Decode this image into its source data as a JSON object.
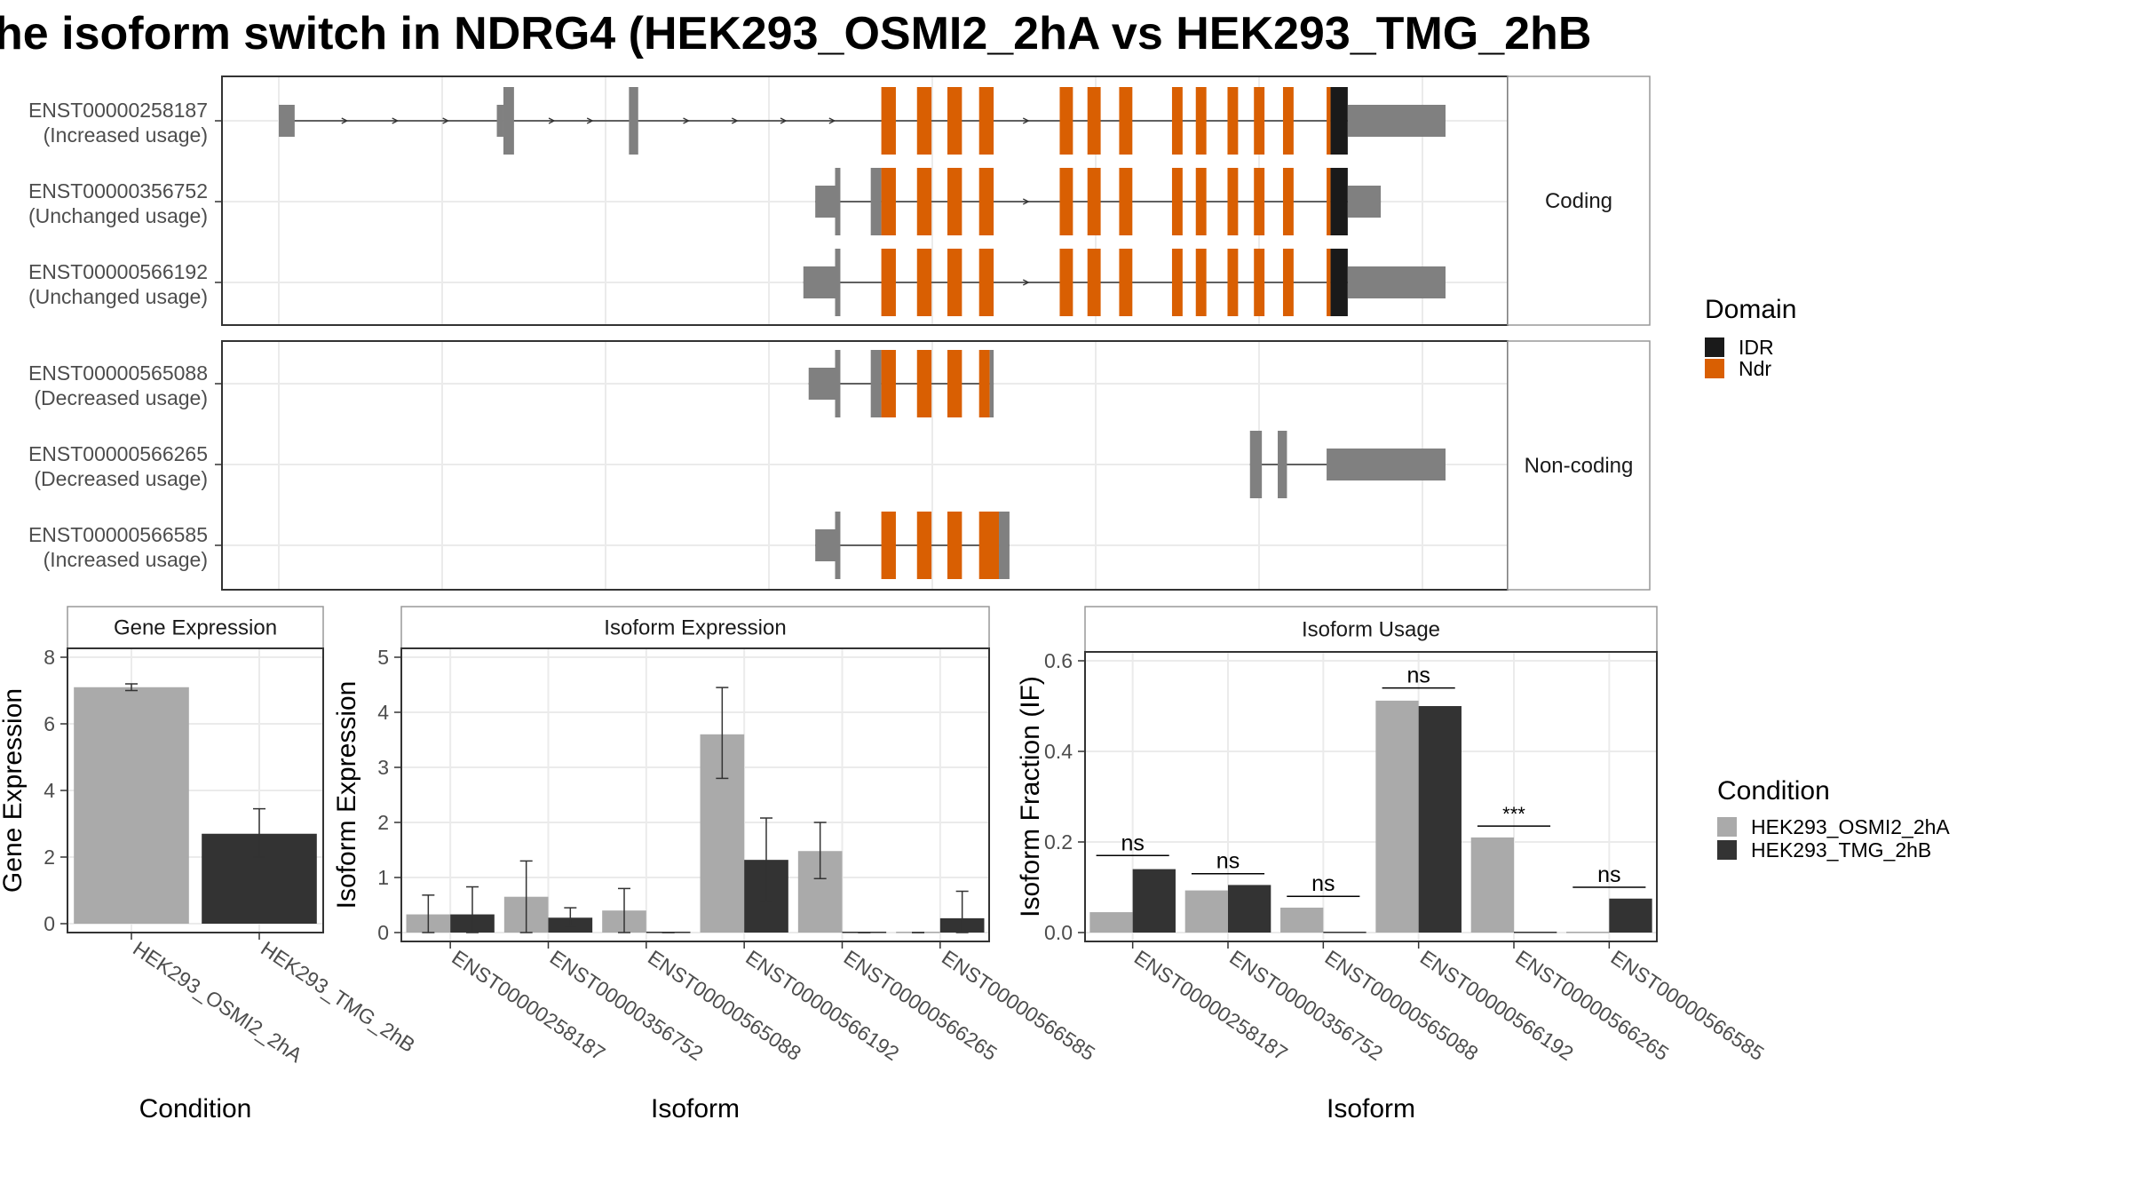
{
  "title": "he isoform switch in NDRG4 (HEK293_OSMI2_2hA vs HEK293_TMG_2hB",
  "colors": {
    "exon_grey": "#808080",
    "domain_IDR": "#1a1a1a",
    "domain_Ndr": "#d95f02",
    "cond_A": "#aaaaaa",
    "cond_B": "#333333",
    "grid": "#ebebeb",
    "strip_bg": "#ffffff"
  },
  "chart_data": [
    {
      "type": "gene-structure",
      "panels": [
        {
          "strip": "Coding",
          "isoforms": [
            {
              "id": "ENST00000258187",
              "usage": "(Increased usage)",
              "exons": [
                {
                  "s": 0.0,
                  "e": 0.012,
                  "h": "s"
                },
                {
                  "s": 0.165,
                  "e": 0.17,
                  "h": "s"
                },
                {
                  "s": 0.17,
                  "e": 0.178,
                  "h": "t"
                },
                {
                  "s": 0.265,
                  "e": 0.272,
                  "h": "t"
                },
                {
                  "s": 0.456,
                  "e": 0.467,
                  "h": "t",
                  "d": "Ndr"
                },
                {
                  "s": 0.483,
                  "e": 0.494,
                  "h": "t",
                  "d": "Ndr"
                },
                {
                  "s": 0.506,
                  "e": 0.517,
                  "h": "t",
                  "d": "Ndr"
                },
                {
                  "s": 0.53,
                  "e": 0.541,
                  "h": "t",
                  "d": "Ndr"
                },
                {
                  "s": 0.591,
                  "e": 0.601,
                  "h": "t",
                  "d": "Ndr"
                },
                {
                  "s": 0.612,
                  "e": 0.622,
                  "h": "t",
                  "d": "Ndr"
                },
                {
                  "s": 0.636,
                  "e": 0.646,
                  "h": "t",
                  "d": "Ndr"
                },
                {
                  "s": 0.676,
                  "e": 0.684,
                  "h": "t",
                  "d": "Ndr"
                },
                {
                  "s": 0.694,
                  "e": 0.702,
                  "h": "t",
                  "d": "Ndr"
                },
                {
                  "s": 0.718,
                  "e": 0.726,
                  "h": "t",
                  "d": "Ndr"
                },
                {
                  "s": 0.738,
                  "e": 0.746,
                  "h": "t",
                  "d": "Ndr"
                },
                {
                  "s": 0.76,
                  "e": 0.768,
                  "h": "t",
                  "d": "Ndr"
                },
                {
                  "s": 0.793,
                  "e": 0.796,
                  "h": "t",
                  "d": "Ndr"
                },
                {
                  "s": 0.796,
                  "e": 0.809,
                  "h": "t",
                  "d": "IDR"
                },
                {
                  "s": 0.809,
                  "e": 0.883,
                  "h": "s"
                }
              ]
            },
            {
              "id": "ENST00000356752",
              "usage": "(Unchanged usage)",
              "exons": [
                {
                  "s": 0.406,
                  "e": 0.421,
                  "h": "s"
                },
                {
                  "s": 0.421,
                  "e": 0.425,
                  "h": "t"
                },
                {
                  "s": 0.448,
                  "e": 0.456,
                  "h": "t"
                },
                {
                  "s": 0.456,
                  "e": 0.467,
                  "h": "t",
                  "d": "Ndr"
                },
                {
                  "s": 0.483,
                  "e": 0.494,
                  "h": "t",
                  "d": "Ndr"
                },
                {
                  "s": 0.506,
                  "e": 0.517,
                  "h": "t",
                  "d": "Ndr"
                },
                {
                  "s": 0.53,
                  "e": 0.541,
                  "h": "t",
                  "d": "Ndr"
                },
                {
                  "s": 0.591,
                  "e": 0.601,
                  "h": "t",
                  "d": "Ndr"
                },
                {
                  "s": 0.612,
                  "e": 0.622,
                  "h": "t",
                  "d": "Ndr"
                },
                {
                  "s": 0.636,
                  "e": 0.646,
                  "h": "t",
                  "d": "Ndr"
                },
                {
                  "s": 0.676,
                  "e": 0.684,
                  "h": "t",
                  "d": "Ndr"
                },
                {
                  "s": 0.694,
                  "e": 0.702,
                  "h": "t",
                  "d": "Ndr"
                },
                {
                  "s": 0.718,
                  "e": 0.726,
                  "h": "t",
                  "d": "Ndr"
                },
                {
                  "s": 0.738,
                  "e": 0.746,
                  "h": "t",
                  "d": "Ndr"
                },
                {
                  "s": 0.76,
                  "e": 0.768,
                  "h": "t",
                  "d": "Ndr"
                },
                {
                  "s": 0.793,
                  "e": 0.796,
                  "h": "t",
                  "d": "Ndr"
                },
                {
                  "s": 0.796,
                  "e": 0.809,
                  "h": "t",
                  "d": "IDR"
                },
                {
                  "s": 0.809,
                  "e": 0.834,
                  "h": "s"
                }
              ]
            },
            {
              "id": "ENST00000566192",
              "usage": "(Unchanged usage)",
              "exons": [
                {
                  "s": 0.397,
                  "e": 0.421,
                  "h": "s"
                },
                {
                  "s": 0.421,
                  "e": 0.425,
                  "h": "t"
                },
                {
                  "s": 0.456,
                  "e": 0.467,
                  "h": "t",
                  "d": "Ndr"
                },
                {
                  "s": 0.483,
                  "e": 0.494,
                  "h": "t",
                  "d": "Ndr"
                },
                {
                  "s": 0.506,
                  "e": 0.517,
                  "h": "t",
                  "d": "Ndr"
                },
                {
                  "s": 0.53,
                  "e": 0.541,
                  "h": "t",
                  "d": "Ndr"
                },
                {
                  "s": 0.591,
                  "e": 0.601,
                  "h": "t",
                  "d": "Ndr"
                },
                {
                  "s": 0.612,
                  "e": 0.622,
                  "h": "t",
                  "d": "Ndr"
                },
                {
                  "s": 0.636,
                  "e": 0.646,
                  "h": "t",
                  "d": "Ndr"
                },
                {
                  "s": 0.676,
                  "e": 0.684,
                  "h": "t",
                  "d": "Ndr"
                },
                {
                  "s": 0.694,
                  "e": 0.702,
                  "h": "t",
                  "d": "Ndr"
                },
                {
                  "s": 0.718,
                  "e": 0.726,
                  "h": "t",
                  "d": "Ndr"
                },
                {
                  "s": 0.738,
                  "e": 0.746,
                  "h": "t",
                  "d": "Ndr"
                },
                {
                  "s": 0.76,
                  "e": 0.768,
                  "h": "t",
                  "d": "Ndr"
                },
                {
                  "s": 0.793,
                  "e": 0.796,
                  "h": "t",
                  "d": "Ndr"
                },
                {
                  "s": 0.796,
                  "e": 0.809,
                  "h": "t",
                  "d": "IDR"
                },
                {
                  "s": 0.809,
                  "e": 0.883,
                  "h": "s"
                }
              ]
            }
          ]
        },
        {
          "strip": "Non-coding",
          "isoforms": [
            {
              "id": "ENST00000565088",
              "usage": "(Decreased usage)",
              "exons": [
                {
                  "s": 0.401,
                  "e": 0.421,
                  "h": "s"
                },
                {
                  "s": 0.421,
                  "e": 0.425,
                  "h": "t"
                },
                {
                  "s": 0.448,
                  "e": 0.456,
                  "h": "t"
                },
                {
                  "s": 0.456,
                  "e": 0.467,
                  "h": "t",
                  "d": "Ndr"
                },
                {
                  "s": 0.483,
                  "e": 0.494,
                  "h": "t",
                  "d": "Ndr"
                },
                {
                  "s": 0.506,
                  "e": 0.517,
                  "h": "t",
                  "d": "Ndr"
                },
                {
                  "s": 0.53,
                  "e": 0.538,
                  "h": "t",
                  "d": "Ndr"
                },
                {
                  "s": 0.538,
                  "e": 0.541,
                  "h": "t"
                }
              ]
            },
            {
              "id": "ENST00000566265",
              "usage": "(Decreased usage)",
              "exons": [
                {
                  "s": 0.735,
                  "e": 0.744,
                  "h": "t"
                },
                {
                  "s": 0.756,
                  "e": 0.763,
                  "h": "t"
                },
                {
                  "s": 0.793,
                  "e": 0.883,
                  "h": "s"
                }
              ]
            },
            {
              "id": "ENST00000566585",
              "usage": "(Increased usage)",
              "exons": [
                {
                  "s": 0.406,
                  "e": 0.421,
                  "h": "s"
                },
                {
                  "s": 0.421,
                  "e": 0.425,
                  "h": "t"
                },
                {
                  "s": 0.456,
                  "e": 0.467,
                  "h": "t",
                  "d": "Ndr"
                },
                {
                  "s": 0.483,
                  "e": 0.494,
                  "h": "t",
                  "d": "Ndr"
                },
                {
                  "s": 0.506,
                  "e": 0.517,
                  "h": "t",
                  "d": "Ndr"
                },
                {
                  "s": 0.53,
                  "e": 0.545,
                  "h": "t",
                  "d": "Ndr"
                },
                {
                  "s": 0.545,
                  "e": 0.553,
                  "h": "t"
                }
              ]
            }
          ]
        }
      ],
      "legend": {
        "title": "Domain",
        "entries": [
          "IDR",
          "Ndr"
        ]
      }
    },
    {
      "type": "bar",
      "strip": "Gene Expression",
      "xlabel": "Condition",
      "ylabel": "Gene Expression",
      "ylim": [
        0,
        8
      ],
      "yticks": [
        0,
        2,
        4,
        6,
        8
      ],
      "categories": [
        "HEK293_OSMI2_2hA",
        "HEK293_TMG_2hB"
      ],
      "values": [
        7.1,
        2.7
      ],
      "errors": [
        [
          7.0,
          7.2
        ],
        [
          2.0,
          3.45
        ]
      ]
    },
    {
      "type": "bar",
      "strip": "Isoform Expression",
      "xlabel": "Isoform",
      "ylabel": "Isoform Expression",
      "ylim": [
        0,
        5
      ],
      "yticks": [
        0,
        1,
        2,
        3,
        4,
        5
      ],
      "categories": [
        "ENST00000258187",
        "ENST00000356752",
        "ENST00000565088",
        "ENST00000566192",
        "ENST00000566265",
        "ENST00000566585"
      ],
      "series": [
        {
          "name": "HEK293_OSMI2_2hA",
          "values": [
            0.33,
            0.65,
            0.4,
            3.6,
            1.48,
            0.0
          ],
          "errors": [
            [
              0.0,
              0.68
            ],
            [
              0.0,
              1.3
            ],
            [
              0.0,
              0.8
            ],
            [
              2.8,
              4.45
            ],
            [
              0.98,
              2.0
            ],
            [
              0.0,
              0.0
            ]
          ]
        },
        {
          "name": "HEK293_TMG_2hB",
          "values": [
            0.33,
            0.27,
            0.0,
            1.32,
            0.0,
            0.26
          ],
          "errors": [
            [
              0.0,
              0.83
            ],
            [
              0.12,
              0.45
            ],
            [
              0.0,
              0.0
            ],
            [
              0.56,
              2.08
            ],
            [
              0.0,
              0.0
            ],
            [
              0.0,
              0.75
            ]
          ]
        }
      ]
    },
    {
      "type": "bar",
      "strip": "Isoform Usage",
      "xlabel": "Isoform",
      "ylabel": "Isoform Fraction (IF)",
      "ylim": [
        0,
        0.6
      ],
      "yticks": [
        "0.0",
        "0.2",
        "0.4",
        "0.6"
      ],
      "categories": [
        "ENST00000258187",
        "ENST00000356752",
        "ENST00000565088",
        "ENST00000566192",
        "ENST00000566265",
        "ENST00000566585"
      ],
      "series": [
        {
          "name": "HEK293_OSMI2_2hA",
          "values": [
            0.045,
            0.093,
            0.055,
            0.512,
            0.21,
            0.0
          ]
        },
        {
          "name": "HEK293_TMG_2hB",
          "values": [
            0.14,
            0.105,
            0.0,
            0.5,
            0.0,
            0.075
          ]
        }
      ],
      "significance": [
        "ns",
        "ns",
        "ns",
        "ns",
        "***",
        "ns"
      ],
      "sig_levels": [
        0.17,
        0.13,
        0.08,
        0.54,
        0.235,
        0.1
      ]
    }
  ],
  "legend_condition": {
    "title": "Condition",
    "entries": [
      "HEK293_OSMI2_2hA",
      "HEK293_TMG_2hB"
    ]
  }
}
